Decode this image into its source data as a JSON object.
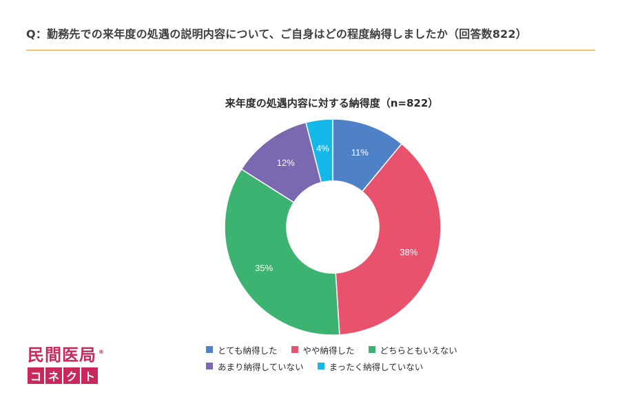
{
  "question": "Q：勤務先での来年度の処遇の説明内容について、ご自身はどの程度納得しましたか（回答数822）",
  "chart_data": {
    "type": "pie",
    "title": "来年度の処遇内容に対する納得度（n=822）",
    "donut": true,
    "categories": [
      "とても納得した",
      "やや納得した",
      "どちらともいえない",
      "あまり納得していない",
      "まったく納得していない"
    ],
    "values": [
      11,
      38,
      35,
      12,
      4
    ],
    "labels": [
      "11%",
      "38%",
      "35%",
      "12%",
      "4%"
    ],
    "colors": [
      "#4f81c7",
      "#e8526c",
      "#3cb371",
      "#7a68b1",
      "#14b9ea"
    ],
    "legend_position": "bottom"
  },
  "logo": {
    "top_text": "民間医局",
    "registered_mark": "®",
    "bottom_chars": [
      "コ",
      "ネ",
      "ク",
      "ト"
    ]
  }
}
